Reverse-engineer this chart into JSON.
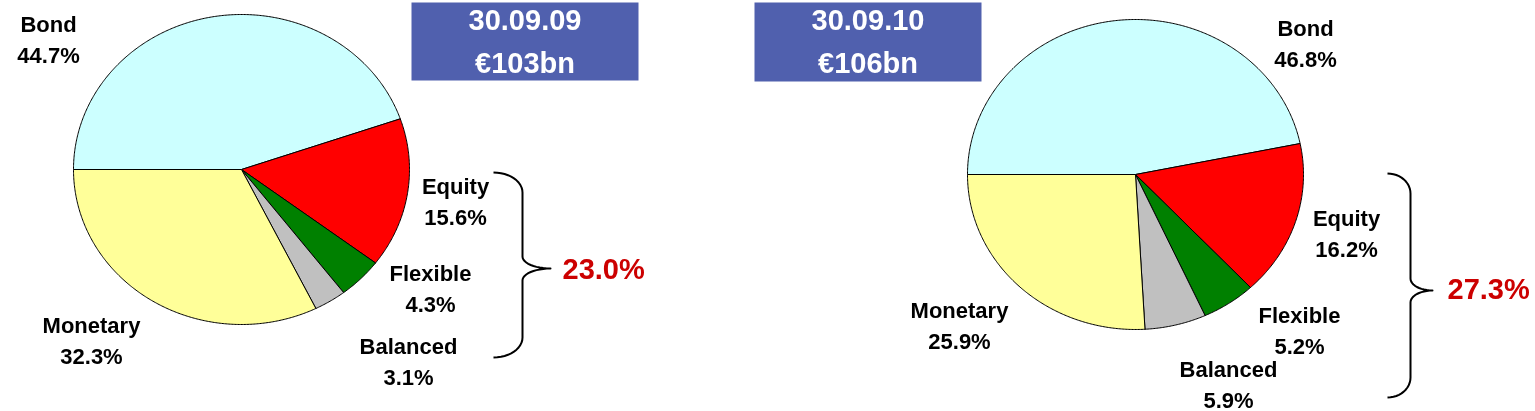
{
  "chart_data": [
    {
      "type": "pie",
      "title": "30.09.09",
      "subtitle": "€103bn",
      "categories": [
        "Bond",
        "Equity",
        "Flexible",
        "Balanced",
        "Monetary"
      ],
      "values": [
        44.7,
        15.6,
        4.3,
        3.1,
        32.3
      ],
      "colors": [
        "#ccffff",
        "#ff0000",
        "#008000",
        "#c0c0c0",
        "#ffff99"
      ],
      "value_labels": [
        "44.7%",
        "15.6%",
        "4.3%",
        "3.1%",
        "32.3%"
      ],
      "annotations": [
        "23.0%"
      ]
    },
    {
      "type": "pie",
      "title": "30.09.10",
      "subtitle": "€106bn",
      "categories": [
        "Bond",
        "Equity",
        "Flexible",
        "Balanced",
        "Monetary"
      ],
      "values": [
        46.8,
        16.2,
        5.2,
        5.9,
        25.9
      ],
      "colors": [
        "#ccffff",
        "#ff0000",
        "#008000",
        "#c0c0c0",
        "#ffff99"
      ],
      "value_labels": [
        "46.8%",
        "16.2%",
        "5.2%",
        "5.9%",
        "25.9%"
      ],
      "annotations": [
        "27.3%"
      ]
    }
  ]
}
